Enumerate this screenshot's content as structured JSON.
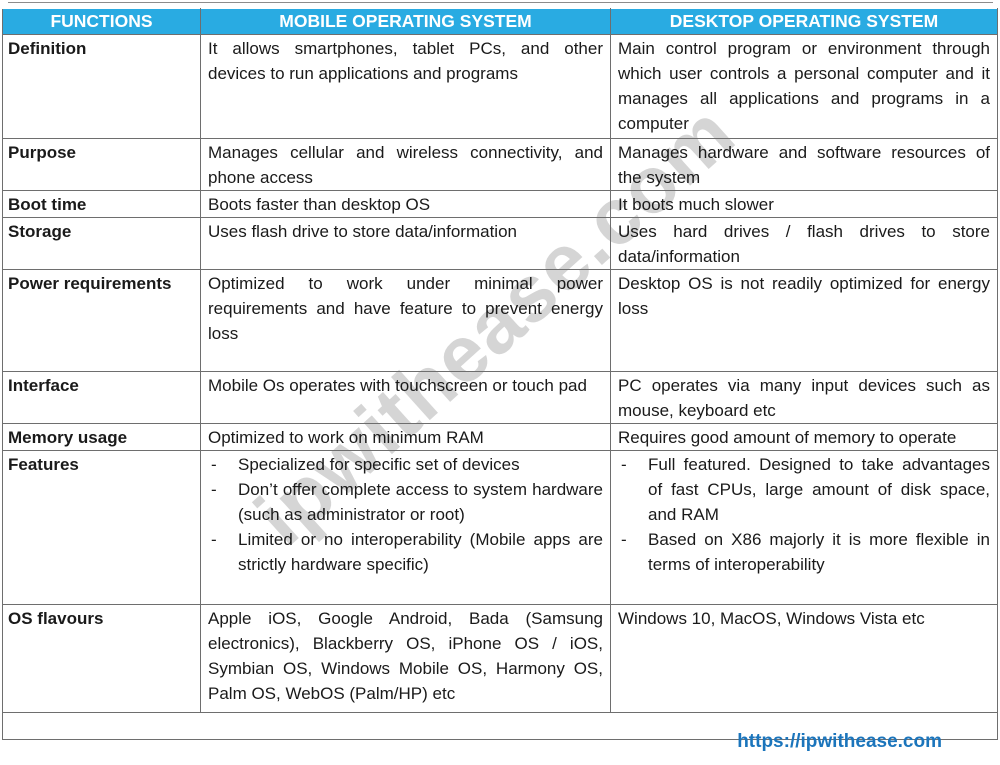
{
  "colors": {
    "header_bg": "#29ABE2",
    "header_text": "#FFFFFF",
    "body_text": "#1A1A1A",
    "grid_border": "#6E6E6E",
    "footer_link": "#1B75BC",
    "watermark": "#C9C9C9"
  },
  "watermark_text": "ipwithease.com",
  "footer": {
    "link_text": "https://ipwithease.com"
  },
  "table": {
    "bullet_marker": "-",
    "headers": [
      "FUNCTIONS",
      "MOBILE OPERATING SYSTEM",
      "DESKTOP OPERATING SYSTEM"
    ],
    "rows": [
      {
        "function": "Definition",
        "mobile": "It allows smartphones, tablet PCs, and other devices to run applications and programs",
        "desktop": "Main control program or environment through which user controls a personal computer and it manages all applications and programs in a computer"
      },
      {
        "function": "Purpose",
        "mobile": "Manages cellular and wireless connectivity, and phone access",
        "desktop": "Manages hardware and software resources of the system"
      },
      {
        "function": "Boot time",
        "mobile": "Boots faster than desktop OS",
        "desktop": "It boots much slower"
      },
      {
        "function": "Storage",
        "mobile": "Uses flash drive to store data/information",
        "desktop": "Uses hard drives / flash drives to store data/information"
      },
      {
        "function": "Power requirements",
        "mobile": "Optimized to work under minimal power requirements and have feature to prevent energy loss",
        "desktop": "Desktop OS is not readily optimized for energy loss"
      },
      {
        "function": "Interface",
        "mobile": "Mobile Os operates with touchscreen or touch pad",
        "desktop": "PC operates via many input devices such as mouse, keyboard etc"
      },
      {
        "function": "Memory usage",
        "mobile": "Optimized to work on minimum RAM",
        "desktop": "Requires good amount of memory to operate"
      },
      {
        "function": "Features",
        "mobile_items": [
          "Specialized for specific set of devices",
          "Don’t offer complete access to system hardware (such as administrator or root)",
          "Limited or no interoperability (Mobile apps are strictly hardware specific)"
        ],
        "desktop_items": [
          "Full featured. Designed to take advantages of fast CPUs, large amount of disk space, and RAM",
          "Based on X86 majorly it is more flexible in terms of interoperability"
        ]
      },
      {
        "function": "OS flavours",
        "mobile": "Apple iOS, Google Android, Bada (Samsung electronics), Blackberry OS, iPhone OS / iOS, Symbian OS, Windows Mobile OS, Harmony OS, Palm OS, WebOS (Palm/HP) etc",
        "desktop": "Windows 10, MacOS, Windows Vista etc"
      }
    ]
  }
}
